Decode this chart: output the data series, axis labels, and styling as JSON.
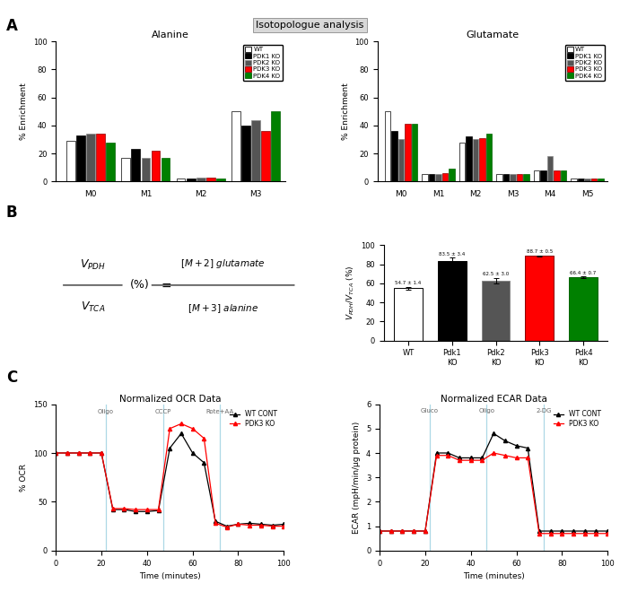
{
  "title_box": "Isotopologue analysis",
  "panel_A_title_left": "Alanine",
  "panel_A_title_right": "Glutamate",
  "legend_labels": [
    "WT",
    "PDK1 KO",
    "PDK2 KO",
    "PDK3 KO",
    "PDK4 KO"
  ],
  "bar_colors": [
    "white",
    "black",
    "#555555",
    "red",
    "green"
  ],
  "bar_edgecolors": [
    "black",
    "black",
    "#888888",
    "darkred",
    "darkgreen"
  ],
  "alanine_categories": [
    "M0",
    "M1",
    "M2",
    "M3"
  ],
  "alanine_data": {
    "WT": [
      29,
      17,
      2,
      50
    ],
    "PDK1 KO": [
      33,
      23,
      2,
      40
    ],
    "PDK2 KO": [
      34,
      17,
      3,
      44
    ],
    "PDK3 KO": [
      34,
      22,
      3,
      36
    ],
    "PDK4 KO": [
      28,
      17,
      2,
      50
    ]
  },
  "glutamate_categories": [
    "M0",
    "M1",
    "M2",
    "M3",
    "M4",
    "M5"
  ],
  "glutamate_data": {
    "WT": [
      50,
      5,
      28,
      5,
      8,
      2
    ],
    "PDK1 KO": [
      36,
      5,
      32,
      5,
      8,
      2
    ],
    "PDK2 KO": [
      30,
      5,
      30,
      5,
      18,
      2
    ],
    "PDK3 KO": [
      41,
      6,
      31,
      5,
      8,
      2
    ],
    "PDK4 KO": [
      41,
      9,
      34,
      5,
      8,
      2
    ]
  },
  "panel_B_categories": [
    "WT",
    "Pdk1\nKO",
    "Pdk2\nKO",
    "Pdk3\nKO",
    "Pdk4\nKO"
  ],
  "panel_B_values": [
    54.7,
    83.5,
    62.5,
    88.7,
    66.4
  ],
  "panel_B_errors": [
    1.4,
    3.4,
    3.0,
    0.5,
    0.7
  ],
  "panel_B_colors": [
    "white",
    "black",
    "#555555",
    "red",
    "green"
  ],
  "panel_B_edgecolors": [
    "black",
    "black",
    "#888888",
    "darkred",
    "darkgreen"
  ],
  "panel_B_annotations": [
    "54.7 ± 1.4",
    "83.5 ± 3.4",
    "62.5 ± 3.0",
    "88.7 ± 0.5",
    "66.4 ± 0.7"
  ],
  "OCR_title": "Normalized OCR Data",
  "ECAR_title": "Normalized ECAR Data",
  "OCR_xlabel": "Time (minutes)",
  "OCR_ylabel": "% OCR",
  "ECAR_xlabel": "Time (minutes)",
  "ECAR_ylabel": "ECAR (mpH/min/µg protein)",
  "OCR_time": [
    0,
    5,
    10,
    15,
    20,
    25,
    30,
    35,
    40,
    45,
    50,
    55,
    60,
    65,
    70,
    75,
    80,
    85,
    90,
    95,
    100
  ],
  "OCR_WT": [
    100,
    100,
    100,
    100,
    100,
    42,
    42,
    40,
    40,
    41,
    105,
    120,
    100,
    90,
    30,
    25,
    27,
    28,
    27,
    26,
    27
  ],
  "OCR_PDK3": [
    100,
    100,
    100,
    100,
    100,
    43,
    43,
    42,
    42,
    42,
    125,
    130,
    125,
    115,
    28,
    24,
    27,
    26,
    26,
    25,
    25
  ],
  "ECAR_time": [
    0,
    5,
    10,
    15,
    20,
    25,
    30,
    35,
    40,
    45,
    50,
    55,
    60,
    65,
    70,
    75,
    80,
    85,
    90,
    95,
    100
  ],
  "ECAR_WT": [
    0.8,
    0.8,
    0.8,
    0.8,
    0.8,
    4.0,
    4.0,
    3.8,
    3.8,
    3.8,
    4.8,
    4.5,
    4.3,
    4.2,
    0.8,
    0.8,
    0.8,
    0.8,
    0.8,
    0.8,
    0.8
  ],
  "ECAR_PDK3": [
    0.8,
    0.8,
    0.8,
    0.8,
    0.8,
    3.9,
    3.9,
    3.7,
    3.7,
    3.7,
    4.0,
    3.9,
    3.8,
    3.8,
    0.7,
    0.7,
    0.7,
    0.7,
    0.7,
    0.7,
    0.7
  ],
  "OCR_vline_positions": [
    22,
    47,
    72
  ],
  "OCR_vline_labels": [
    "Oligo",
    "CCCP",
    "Rote+AA"
  ],
  "ECAR_vline_positions": [
    22,
    47,
    72
  ],
  "ECAR_vline_labels": [
    "Gluco",
    "Oligo",
    "2-DG"
  ],
  "line_legend_labels": [
    "WT CONT",
    "PDK3 KO"
  ],
  "line_colors": [
    "black",
    "red"
  ],
  "background_color": "#ffffff"
}
